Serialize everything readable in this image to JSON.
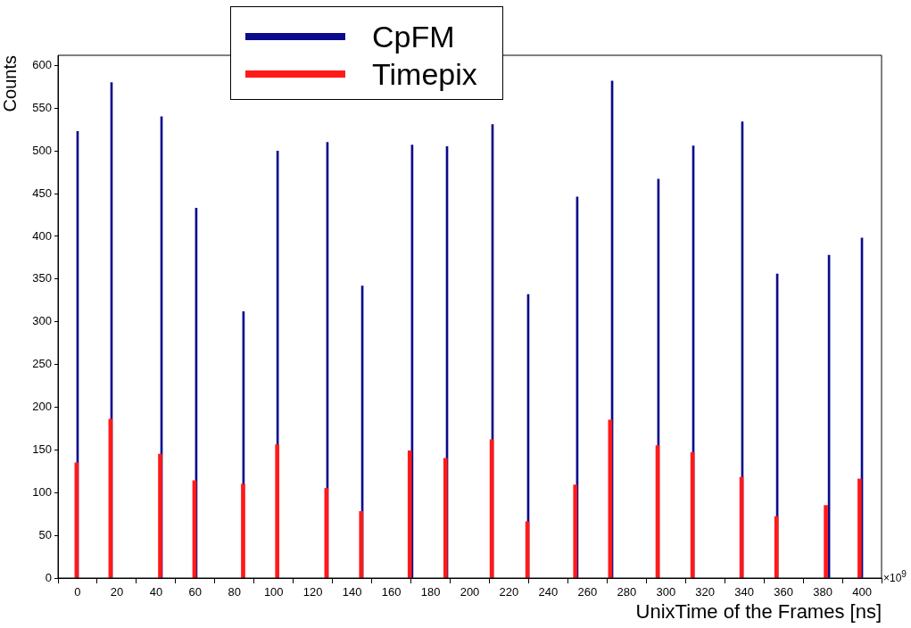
{
  "chart_data": {
    "type": "bar",
    "xlabel": "UnixTime of the Frames [ns]",
    "ylabel": "Counts",
    "annotations": [
      "×10$^{9}$"
    ],
    "xlim": [
      -10,
      410
    ],
    "xticks": [
      0,
      20,
      40,
      60,
      80,
      100,
      120,
      140,
      160,
      180,
      200,
      220,
      240,
      260,
      280,
      300,
      320,
      340,
      360,
      380,
      400
    ],
    "ylim": [
      0,
      612
    ],
    "yticks": [
      0,
      50,
      100,
      150,
      200,
      250,
      300,
      350,
      400,
      450,
      500,
      550,
      600
    ],
    "grid": false,
    "legend": "top",
    "series": [
      {
        "name": "CpFM",
        "color": "#0a0a8c",
        "x": [
          0,
          17.3,
          42.8,
          60.5,
          84.6,
          102,
          127.4,
          145.2,
          170.6,
          188.4,
          211.6,
          229.8,
          254.8,
          272.6,
          296.2,
          314,
          339,
          356.8,
          383.2,
          400
        ],
        "values": [
          523,
          580,
          540,
          433,
          312,
          500,
          510,
          342,
          507,
          505,
          531,
          332,
          446,
          582,
          467,
          506,
          534,
          356,
          378,
          398
        ]
      },
      {
        "name": "Timepix",
        "color": "#ff1a1a",
        "x": [
          -0.5,
          16.8,
          42.1,
          59.6,
          84.4,
          101.8,
          126.9,
          144.6,
          169.4,
          187.6,
          211.2,
          229.4,
          253.8,
          271.6,
          295.8,
          313.6,
          338.6,
          356.4,
          381.6,
          398.8
        ],
        "values": [
          135,
          186,
          145,
          114,
          110,
          156,
          105,
          78,
          149,
          140,
          162,
          66,
          109,
          185,
          155,
          147,
          118,
          72,
          85,
          116
        ]
      }
    ]
  }
}
